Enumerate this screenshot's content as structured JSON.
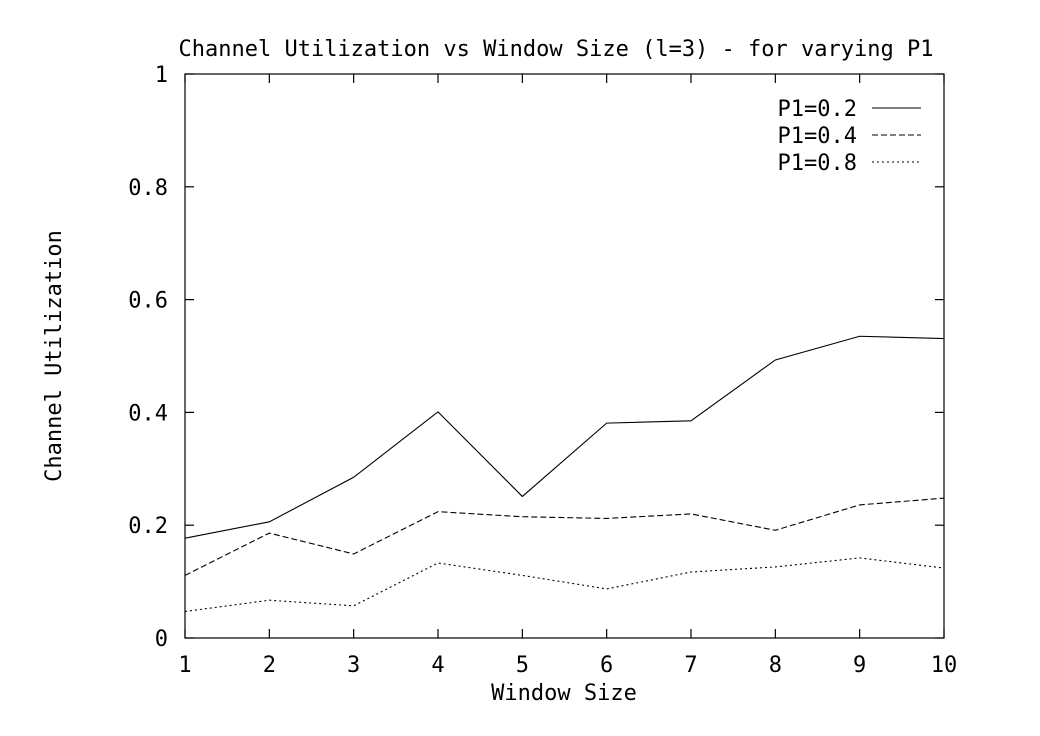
{
  "chart_data": {
    "type": "line",
    "title": "Channel Utilization vs Window Size (l=3) - for varying P1",
    "xlabel": "Window Size",
    "ylabel": "Channel Utilization",
    "x": [
      1,
      2,
      3,
      4,
      5,
      6,
      7,
      8,
      9,
      10
    ],
    "xlim": [
      1,
      10
    ],
    "ylim": [
      0,
      1
    ],
    "xticks": [
      "1",
      "2",
      "3",
      "4",
      "5",
      "6",
      "7",
      "8",
      "9",
      "10"
    ],
    "yticks": [
      "0",
      "0.2",
      "0.4",
      "0.6",
      "0.8",
      "1"
    ],
    "grid": false,
    "legend_position": "top-right",
    "series": [
      {
        "name": "P1=0.2",
        "style": "solid",
        "values": [
          0.177,
          0.206,
          0.285,
          0.401,
          0.251,
          0.381,
          0.385,
          0.493,
          0.535,
          0.531
        ]
      },
      {
        "name": "P1=0.4",
        "style": "dashed",
        "values": [
          0.111,
          0.186,
          0.149,
          0.224,
          0.215,
          0.212,
          0.22,
          0.191,
          0.236,
          0.248
        ]
      },
      {
        "name": "P1=0.8",
        "style": "dotted",
        "values": [
          0.047,
          0.067,
          0.057,
          0.133,
          0.111,
          0.087,
          0.117,
          0.126,
          0.142,
          0.124
        ]
      }
    ]
  }
}
